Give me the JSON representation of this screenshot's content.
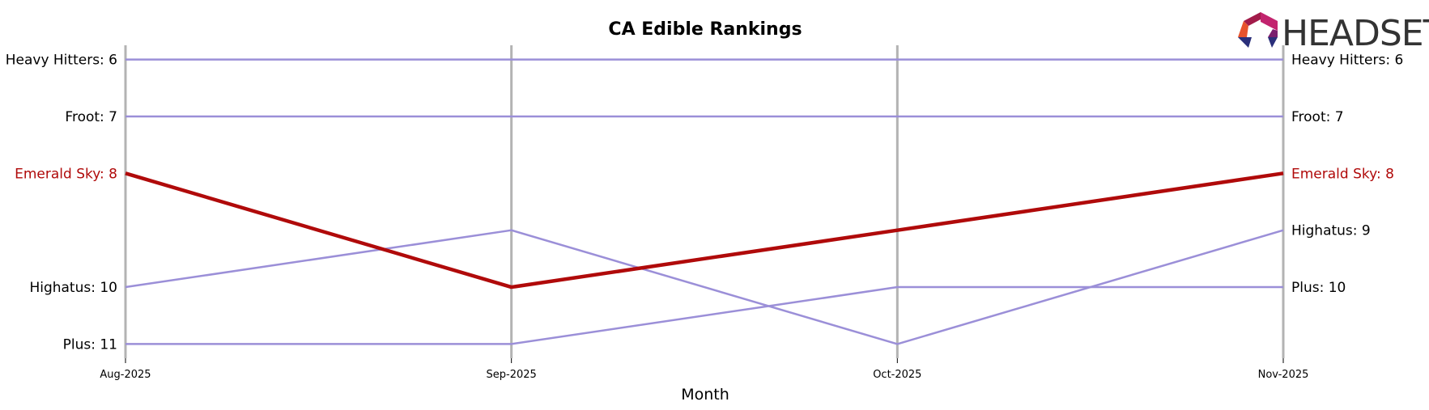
{
  "chart_data": {
    "type": "line",
    "title": "CA Edible Rankings",
    "xlabel": "Month",
    "ylabel": "",
    "categories": [
      "Aug-2025",
      "Sep-2025",
      "Oct-2025",
      "Nov-2025"
    ],
    "ylim": [
      5.75,
      11.25
    ],
    "y_inverted": true,
    "grid": "vertical lines at each month",
    "legend": "none; series labels printed at left and right ends of lines",
    "series": [
      {
        "name": "Heavy Hitters",
        "values": [
          6,
          6,
          6,
          6
        ],
        "start_label": "Heavy Hitters: 6",
        "end_label": "Heavy Hitters: 6",
        "highlight": false
      },
      {
        "name": "Froot",
        "values": [
          7,
          7,
          7,
          7
        ],
        "start_label": "Froot: 7",
        "end_label": "Froot: 7",
        "highlight": false
      },
      {
        "name": "Emerald Sky",
        "values": [
          8,
          10,
          9,
          8
        ],
        "start_label": "Emerald Sky: 8",
        "end_label": "Emerald Sky: 8",
        "highlight": true
      },
      {
        "name": "Highatus",
        "values": [
          10,
          9,
          11,
          9
        ],
        "start_label": "Highatus: 10",
        "end_label": "Highatus: 9",
        "highlight": false
      },
      {
        "name": "Plus",
        "values": [
          11,
          11,
          10,
          10
        ],
        "start_label": "Plus: 11",
        "end_label": "Plus: 10",
        "highlight": false
      }
    ],
    "colors": {
      "series": "#9b8fd8",
      "highlight": "#b00a0a",
      "grid": "#b3b3b3",
      "label": "#000000",
      "highlight_label": "#b00a0a"
    }
  },
  "logo": {
    "text": "HEADSET",
    "icon": "headset-hexagon-logo-icon",
    "colors": [
      "#e8532c",
      "#a21b4a",
      "#c2246e",
      "#2a2f7a"
    ]
  }
}
